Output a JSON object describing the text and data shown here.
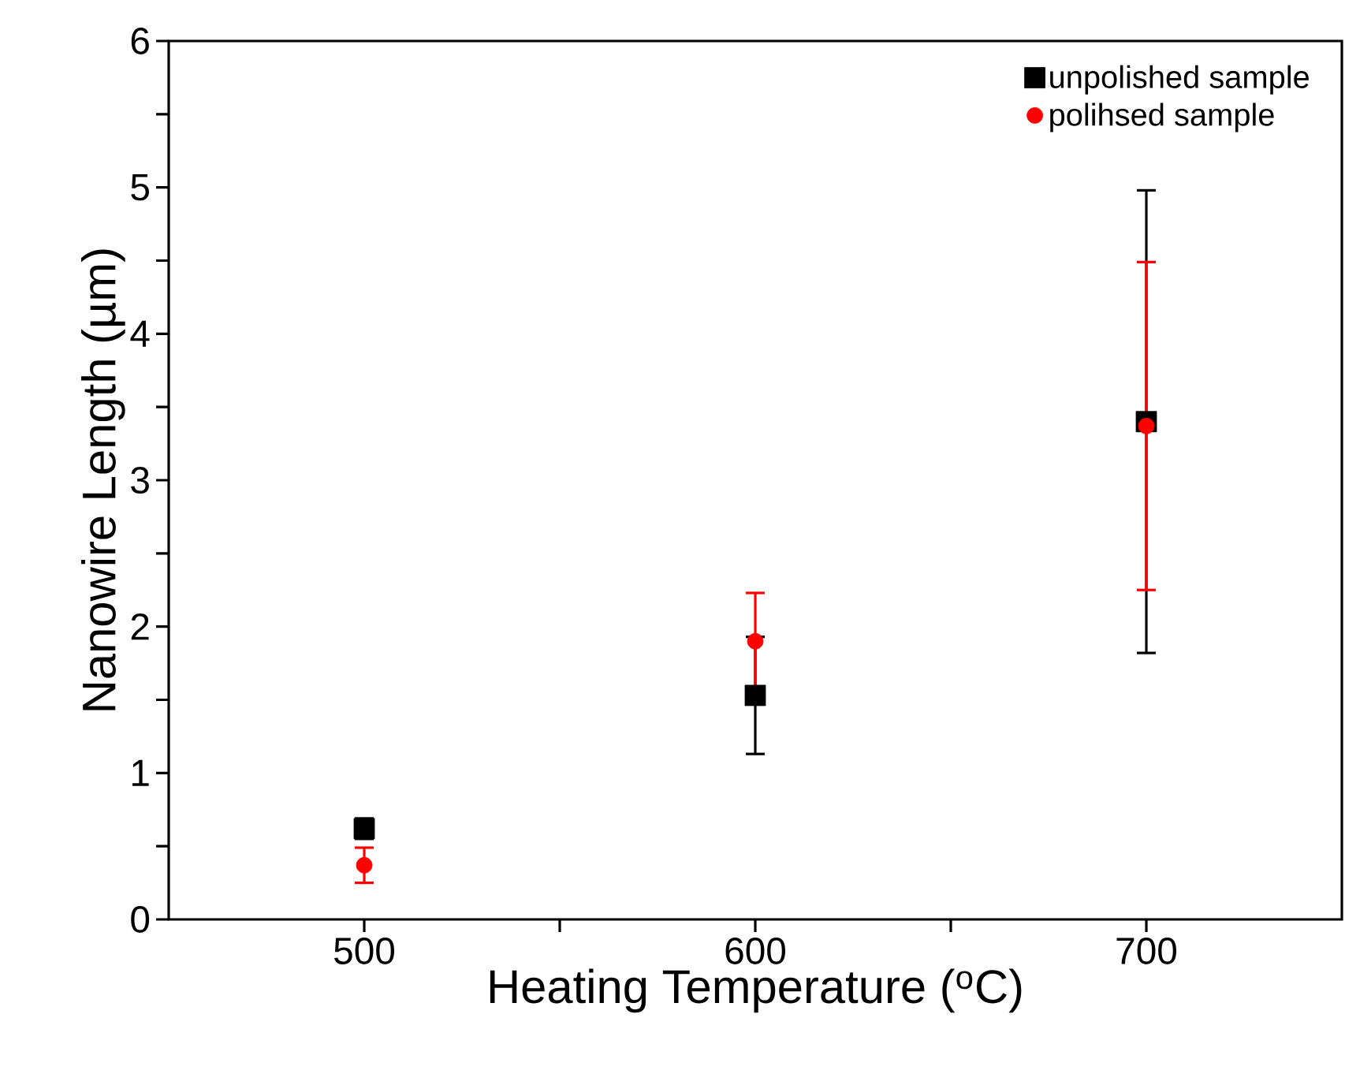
{
  "chart_data": {
    "type": "scatter",
    "xlabel": "Heating Temperature ($^{o}$C)",
    "ylabel": "Nanowire Length (µm)",
    "xlim": [
      450,
      750
    ],
    "ylim": [
      0,
      6
    ],
    "xticks": [
      500,
      {
        "value": 550,
        "label": null
      },
      600,
      {
        "value": 650,
        "label": null
      },
      700
    ],
    "yticks": [
      0,
      {
        "value": 0.5,
        "label": null
      },
      1,
      {
        "value": 1.5,
        "label": null
      },
      2,
      {
        "value": 2.5,
        "label": null
      },
      3,
      {
        "value": 3.5,
        "label": null
      },
      4,
      {
        "value": 4.5,
        "label": null
      },
      5,
      {
        "value": 5.5,
        "label": null
      },
      6
    ],
    "legend": "top right",
    "grid": false,
    "series": [
      {
        "name": "unpolished sample",
        "color": "#000000",
        "marker": "square",
        "x": [
          500,
          600,
          700
        ],
        "values": [
          0.62,
          1.53,
          3.4
        ],
        "errors": [
          0.07,
          0.4,
          1.58
        ]
      },
      {
        "name": "polihsed sample",
        "color": "#ff0000",
        "marker": "circle",
        "x": [
          500,
          600,
          700
        ],
        "values": [
          0.37,
          1.9,
          3.37
        ],
        "errors": [
          0.12,
          0.33,
          1.12
        ]
      }
    ]
  }
}
